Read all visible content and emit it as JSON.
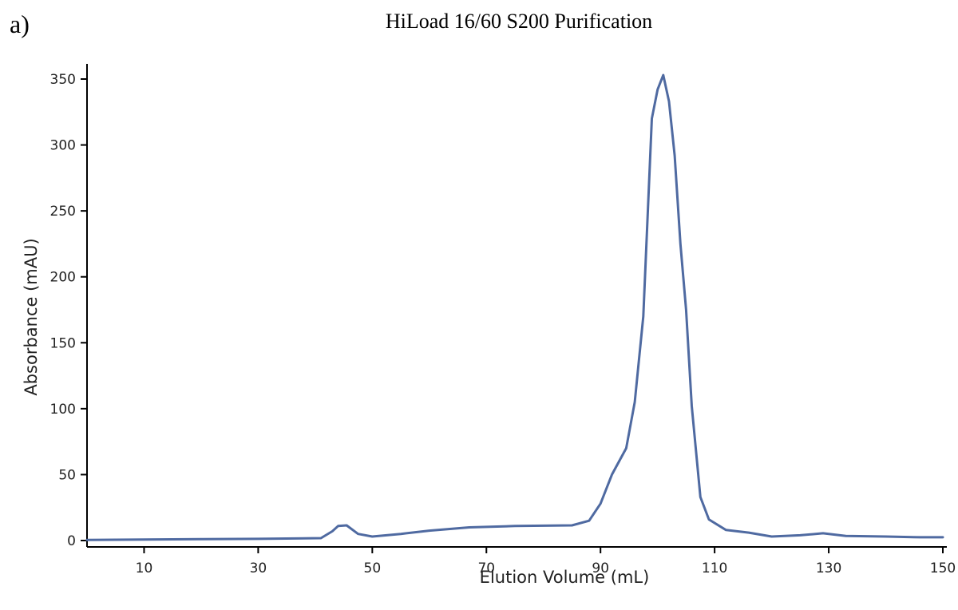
{
  "panel_label": "a)",
  "chart_data": {
    "type": "line",
    "title": "HiLoad 16/60 S200 Purification",
    "xlabel": "Elution Volume (mL)",
    "ylabel": "Absorbance  (mAU)",
    "xlim": [
      0,
      150
    ],
    "ylim": [
      0,
      360
    ],
    "xticks": [
      10,
      30,
      50,
      70,
      90,
      110,
      130,
      150
    ],
    "yticks": [
      0,
      50,
      100,
      150,
      200,
      250,
      300,
      350
    ],
    "grid": false,
    "line_color": "#4f6aa1",
    "series": [
      {
        "x": [
          0,
          10,
          20,
          30,
          41,
          43,
          44,
          45.5,
          47.5,
          50,
          55,
          60,
          67,
          75,
          85,
          88,
          90,
          92,
          94.5,
          96,
          97.5,
          99,
          100,
          101,
          102,
          103,
          104,
          105,
          106,
          107.5,
          109,
          112,
          116,
          120,
          125,
          129,
          133,
          140,
          146,
          150
        ],
        "y": [
          0.5,
          0.8,
          1,
          1.3,
          1.8,
          7,
          11,
          11.5,
          5,
          3,
          5,
          7.5,
          10,
          11,
          11.5,
          15,
          28,
          50,
          70,
          105,
          170,
          320,
          342,
          353,
          333,
          292,
          225,
          175,
          102,
          33,
          16,
          8,
          6,
          3,
          4,
          5.5,
          3.5,
          3,
          2.5,
          2.5
        ]
      }
    ]
  }
}
